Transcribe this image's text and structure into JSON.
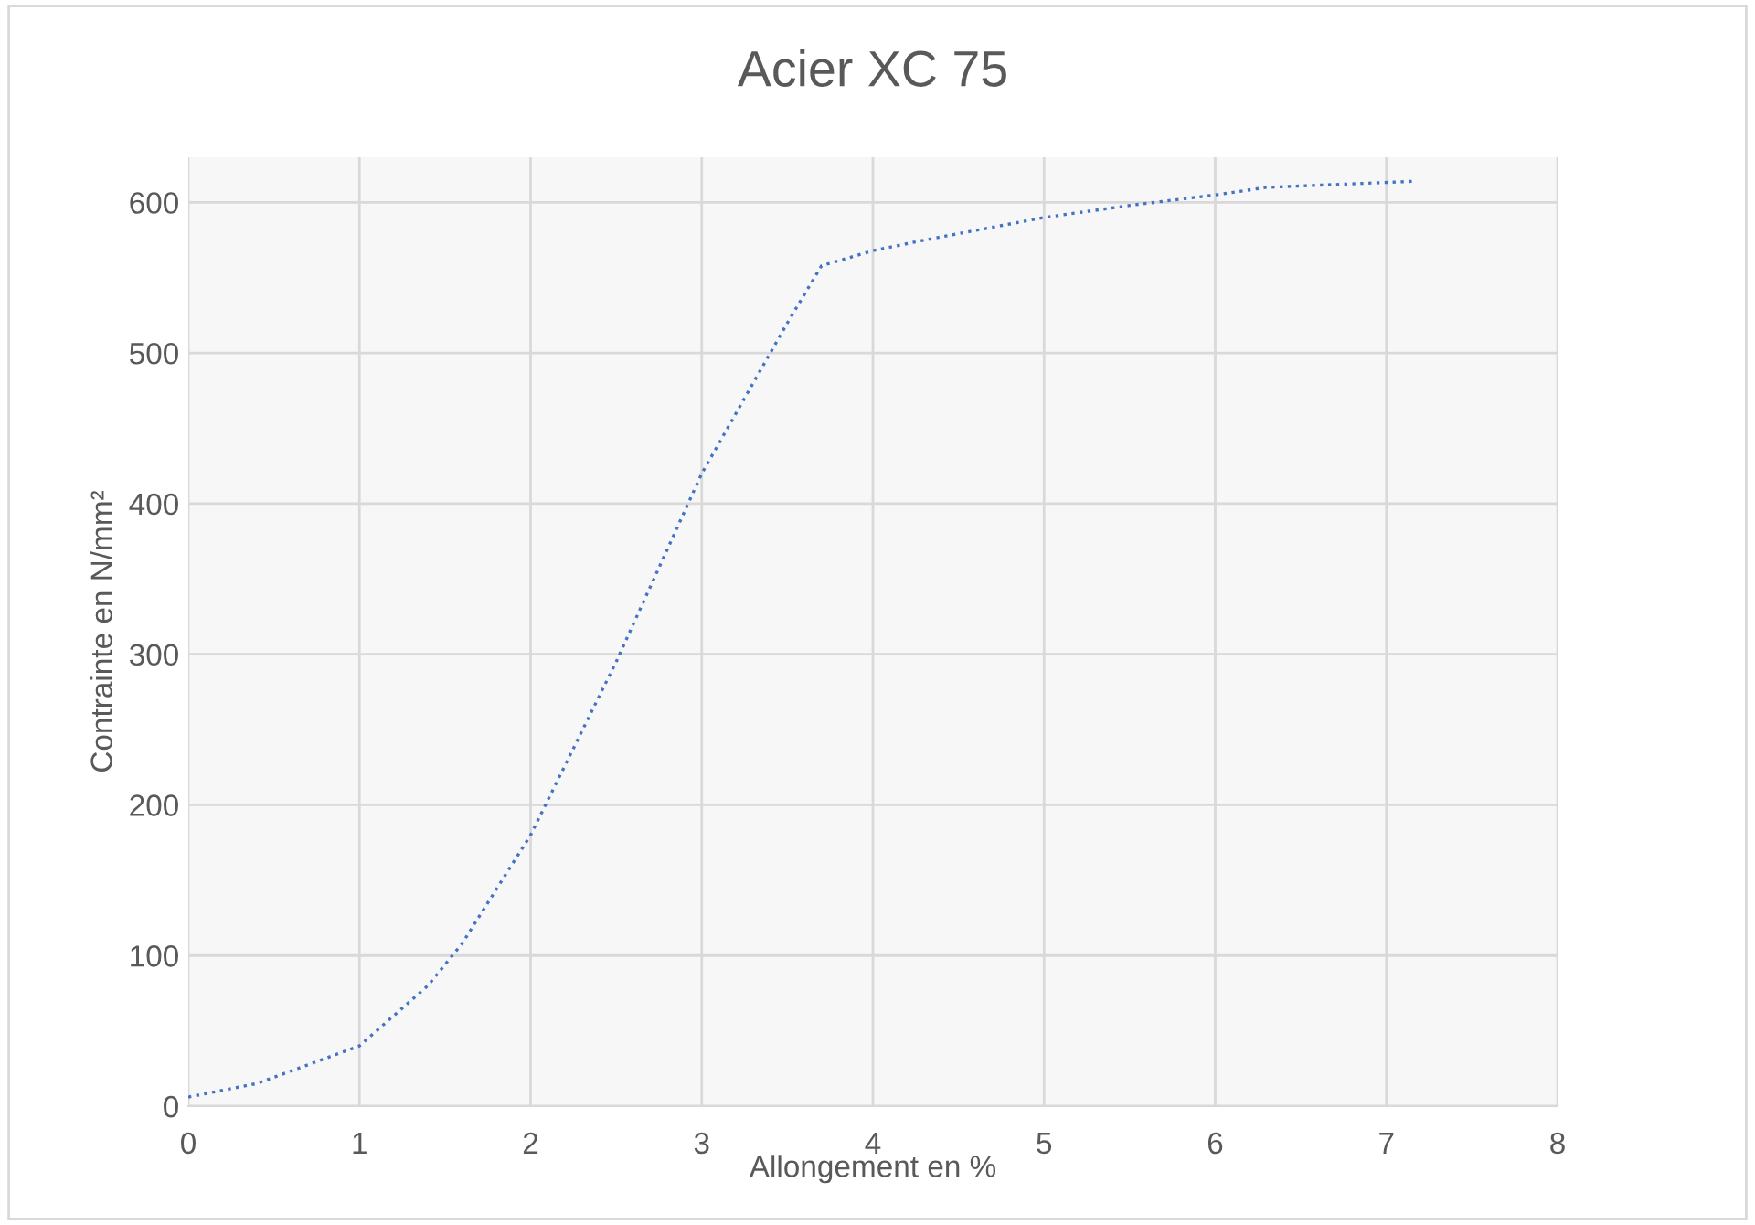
{
  "chart_data": {
    "type": "line",
    "title": "Acier XC 75",
    "xlabel": "Allongement en %",
    "ylabel": "Contrainte en N/mm²",
    "xlim": [
      0,
      8
    ],
    "xticks": [
      0,
      1,
      2,
      3,
      4,
      5,
      6,
      7,
      8
    ],
    "ylim": [
      0,
      630
    ],
    "yticks": [
      0,
      100,
      200,
      300,
      400,
      500,
      600
    ],
    "grid": true,
    "line_style": "dotted",
    "marker": "none",
    "series": [
      {
        "color": "#4472c4",
        "x": [
          0,
          0.4,
          1,
          1.4,
          1.6,
          2,
          2.5,
          3,
          3.5,
          3.7,
          4,
          4.3,
          5,
          5.5,
          6,
          6.3,
          7.15
        ],
        "values": [
          6,
          15,
          40,
          80,
          108,
          180,
          295,
          420,
          520,
          558,
          568,
          575,
          590,
          598,
          605,
          610,
          614
        ]
      }
    ]
  }
}
